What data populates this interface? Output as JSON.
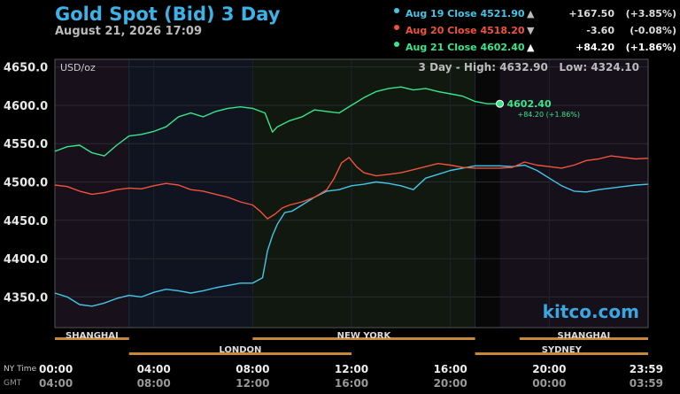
{
  "header": {
    "title": "Gold Spot (Bid) 3 Day",
    "subtitle": "August 21, 2026 17:09"
  },
  "legend": [
    {
      "label": "Aug 19 Close",
      "value": "4521.90",
      "arrow": "▲",
      "change": "+167.50",
      "pct": "(+3.85%)",
      "color": "#44c6e8"
    },
    {
      "label": "Aug 20 Close",
      "value": "4518.20",
      "arrow": "▼",
      "change": "-3.60",
      "pct": "(-0.08%)",
      "color": "#f0533c"
    },
    {
      "label": "Aug 21 Close",
      "value": "4602.40",
      "arrow": "▲",
      "change": "+84.20",
      "pct": "(+1.86%)",
      "color": "#39e68c"
    }
  ],
  "plot": {
    "unit": "USD/oz",
    "high_low": "3 Day - High: 4632.90   Low: 4324.10",
    "last_price": "4602.40",
    "last_change": "+84.20 (+1.86%)",
    "watermark": "kitco.com"
  },
  "sessions": {
    "row1": [
      "SHANGHAI",
      "NEW YORK",
      "SHANGHAI"
    ],
    "row2": [
      "LONDON",
      "SYDNEY"
    ]
  },
  "time_axis": {
    "ny_label": "NY Time",
    "gmt_label": "GMT",
    "ny_times": [
      "00:00",
      "04:00",
      "08:00",
      "12:00",
      "16:00",
      "20:00",
      "23:59"
    ],
    "gmt_times": [
      "04:00",
      "08:00",
      "12:00",
      "16:00",
      "20:00",
      "00:00",
      "03:59"
    ]
  },
  "chart_data": {
    "type": "line",
    "xlabel": "",
    "ylabel": "",
    "x_unit": "hours (NY time)",
    "xlim": [
      0,
      24
    ],
    "ylim": [
      4310,
      4660
    ],
    "y_ticks": [
      4350,
      4400,
      4450,
      4500,
      4550,
      4600,
      4650
    ],
    "y_tick_labels": [
      "4350.0",
      "4400.0",
      "4450.0",
      "4500.0",
      "4550.0",
      "4600.0",
      "4650.0"
    ],
    "grid": true,
    "series": [
      {
        "name": "Aug 19",
        "color": "#44c6e8",
        "x": [
          0,
          0.5,
          1,
          1.5,
          2,
          2.5,
          3,
          3.5,
          4,
          4.5,
          5,
          5.5,
          6,
          6.5,
          7,
          7.5,
          8,
          8.4,
          8.6,
          8.8,
          9,
          9.3,
          9.6,
          10,
          10.5,
          11,
          11.5,
          12,
          12.5,
          13,
          13.5,
          14,
          14.5,
          15,
          15.5,
          16,
          16.5,
          17,
          18,
          18.5,
          19,
          19.5,
          20,
          20.5,
          21,
          21.5,
          22,
          22.5,
          23,
          23.5,
          24
        ],
        "y": [
          4355,
          4350,
          4340,
          4338,
          4342,
          4348,
          4352,
          4350,
          4356,
          4360,
          4358,
          4355,
          4358,
          4362,
          4365,
          4368,
          4368,
          4375,
          4410,
          4430,
          4445,
          4460,
          4462,
          4470,
          4480,
          4488,
          4490,
          4495,
          4497,
          4500,
          4498,
          4495,
          4490,
          4505,
          4510,
          4515,
          4518,
          4521,
          4521,
          4520,
          4522,
          4515,
          4505,
          4495,
          4488,
          4487,
          4490,
          4492,
          4494,
          4496,
          4497
        ]
      },
      {
        "name": "Aug 20",
        "color": "#f0533c",
        "x": [
          0,
          0.5,
          1,
          1.5,
          2,
          2.5,
          3,
          3.5,
          4,
          4.5,
          5,
          5.5,
          6,
          6.5,
          7,
          7.5,
          8,
          8.3,
          8.6,
          8.9,
          9.2,
          9.5,
          10,
          10.5,
          11,
          11.3,
          11.6,
          11.9,
          12.2,
          12.5,
          13,
          13.5,
          14,
          14.5,
          15,
          15.5,
          16,
          16.5,
          17,
          18,
          18.5,
          19,
          19.5,
          20,
          20.5,
          21,
          21.5,
          22,
          22.5,
          23,
          23.5,
          24
        ],
        "y": [
          4496,
          4494,
          4488,
          4484,
          4486,
          4490,
          4492,
          4491,
          4495,
          4498,
          4496,
          4490,
          4488,
          4484,
          4480,
          4474,
          4470,
          4462,
          4452,
          4458,
          4466,
          4470,
          4474,
          4480,
          4490,
          4505,
          4525,
          4532,
          4520,
          4512,
          4508,
          4510,
          4512,
          4516,
          4520,
          4524,
          4522,
          4519,
          4518,
          4518,
          4519,
          4526,
          4522,
          4520,
          4518,
          4522,
          4528,
          4530,
          4534,
          4532,
          4530,
          4531
        ]
      },
      {
        "name": "Aug 21",
        "color": "#39e68c",
        "x": [
          0,
          0.5,
          1,
          1.5,
          2,
          2.5,
          3,
          3.5,
          4,
          4.5,
          5,
          5.5,
          6,
          6.5,
          7,
          7.5,
          8,
          8.5,
          8.8,
          9,
          9.5,
          10,
          10.5,
          11,
          11.5,
          12,
          12.5,
          13,
          13.5,
          14,
          14.5,
          15,
          15.5,
          16,
          16.5,
          17,
          17.5,
          18
        ],
        "y": [
          4540,
          4546,
          4548,
          4538,
          4534,
          4548,
          4560,
          4562,
          4566,
          4572,
          4585,
          4590,
          4585,
          4592,
          4596,
          4598,
          4596,
          4590,
          4565,
          4572,
          4580,
          4585,
          4594,
          4592,
          4590,
          4600,
          4610,
          4618,
          4622,
          4624,
          4620,
          4622,
          4618,
          4615,
          4612,
          4605,
          4602,
          4602
        ]
      }
    ]
  }
}
